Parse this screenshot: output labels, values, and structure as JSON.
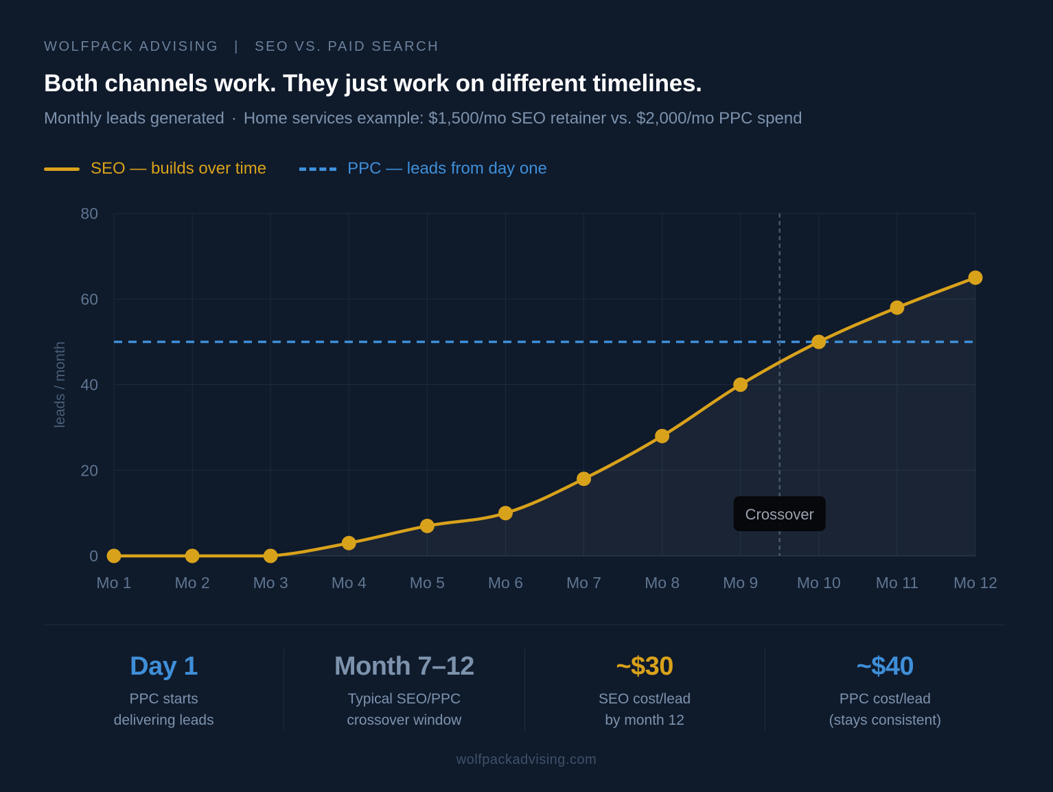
{
  "header": {
    "brand": "WOLFPACK ADVISING",
    "brand_sep": "|",
    "section": "SEO VS. PAID SEARCH",
    "headline": "Both channels work. They just work on different timelines.",
    "subtitle_left": "Monthly leads generated",
    "subtitle_dot": "·",
    "subtitle_right": "Home services example: $1,500/mo SEO retainer vs. $2,000/mo PPC spend"
  },
  "legend": {
    "seo_label": "SEO — builds over time",
    "ppc_label": "PPC — leads from day one"
  },
  "colors": {
    "background": "#0f1a2b",
    "seo": "#d9a21b",
    "ppc": "#3f8fd8",
    "grid": "#1e2b3c",
    "axis_text": "#5f7590",
    "crossover_line": "#4a5668"
  },
  "chart_data": {
    "type": "line",
    "categories": [
      "Mo 1",
      "Mo 2",
      "Mo 3",
      "Mo 4",
      "Mo 5",
      "Mo 6",
      "Mo 7",
      "Mo 8",
      "Mo 9",
      "Mo 10",
      "Mo 11",
      "Mo 12"
    ],
    "series": [
      {
        "name": "SEO — builds over time",
        "style": "solid-with-markers-and-area",
        "values": [
          0,
          0,
          0,
          3,
          7,
          10,
          18,
          28,
          40,
          50,
          58,
          65
        ]
      },
      {
        "name": "PPC — leads from day one",
        "style": "dashed",
        "values": [
          50,
          50,
          50,
          50,
          50,
          50,
          50,
          50,
          50,
          50,
          50,
          50
        ]
      }
    ],
    "ylabel": "leads / month",
    "ylim": [
      0,
      80
    ],
    "yticks": [
      "0",
      "20",
      "40",
      "60",
      "80"
    ],
    "grid": true,
    "annotation": {
      "label": "Crossover",
      "x": 9.5
    }
  },
  "stats": [
    {
      "value": "Day 1",
      "line1": "PPC starts",
      "line2": "delivering leads",
      "color": "#3f8fd8"
    },
    {
      "value": "Month 7–12",
      "line1": "Typical SEO/PPC",
      "line2": "crossover window",
      "color": "#7d93ad"
    },
    {
      "value": "~$30",
      "line1": "SEO cost/lead",
      "line2": "by month 12",
      "color": "#d9a21b"
    },
    {
      "value": "~$40",
      "line1": "PPC cost/lead",
      "line2": "(stays consistent)",
      "color": "#3f8fd8"
    }
  ],
  "footer": "wolfpackadvising.com"
}
